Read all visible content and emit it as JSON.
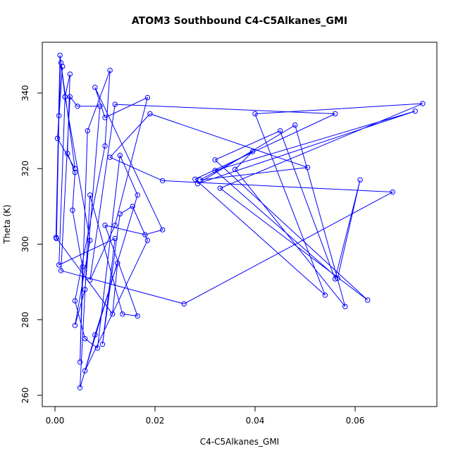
{
  "chart_data": {
    "type": "line",
    "title": "ATOM3 Southbound C4-C5Alkanes_GMI",
    "x_label": "C4-C5Alkanes_GMI",
    "y_label": "Theta (K)",
    "color": "blue",
    "marker": "open-circle",
    "xlim": [
      -0.00254,
      0.07634
    ],
    "ylim": [
      257.02,
      353.43
    ],
    "xticks": [
      {
        "value": 0,
        "label": "0.00"
      },
      {
        "value": 0.02,
        "label": "0.02"
      },
      {
        "value": 0.04,
        "label": "0.04"
      },
      {
        "value": 0.06,
        "label": "0.06"
      }
    ],
    "yticks": [
      260,
      280,
      300,
      320,
      340
    ],
    "x": [
      0.0003,
      0.0008,
      0.0012,
      0.002,
      0.003,
      0.0025,
      0.004,
      0.0035,
      0.0055,
      0.005,
      0.0065,
      0.011,
      0.01,
      0.004,
      0.006,
      0.0085,
      0.013,
      0.0165,
      0.005,
      0.007,
      0.0135,
      0.0165,
      0.01,
      0.018,
      0.0215,
      0.008,
      0.01,
      0.0185,
      0.012,
      0.007,
      0.012,
      0.056,
      0.028,
      0.054,
      0.04,
      0.0735,
      0.033,
      0.0625,
      0.032,
      0.045,
      0.056,
      0.061,
      0.0565,
      0.032,
      0.072,
      0.0285,
      0.048,
      0.058,
      0.036,
      0.0395,
      0.029,
      0.0505,
      0.019,
      0.011,
      0.0215,
      0.0675,
      0.0258,
      0.0012,
      0.003,
      0.0045,
      0.009,
      0.006,
      0.004,
      0.007,
      0.002,
      0.0008,
      0.012,
      0.0095,
      0.013,
      0.0155,
      0.0185,
      0.006,
      0.008,
      0.0125,
      0.0115,
      0.0002,
      0.001,
      0.004,
      0.0005,
      0.0015
    ],
    "values": [
      301.5,
      334,
      348,
      339,
      345,
      324,
      319,
      309,
      294,
      268.8,
      330,
      346,
      326,
      285,
      275,
      272.5,
      323.5,
      313,
      262,
      313,
      281.5,
      281,
      305,
      302.5,
      303.8,
      341.5,
      333.5,
      338.8,
      305,
      290.5,
      337,
      334.5,
      317.2,
      286.5,
      334.5,
      337.2,
      314.8,
      285.2,
      322.3,
      330,
      290.8,
      317,
      291,
      319.5,
      335.2,
      316,
      331.5,
      283.5,
      319.8,
      324.5,
      317,
      320.3,
      334.5,
      323,
      316.8,
      313.8,
      284.2,
      293,
      339,
      336.5,
      336.5,
      288,
      278.5,
      301,
      339,
      294.5,
      301.5,
      273.5,
      308,
      310,
      301,
      266.5,
      276,
      295,
      281.5,
      301.8,
      350,
      320,
      328,
      347
    ]
  }
}
